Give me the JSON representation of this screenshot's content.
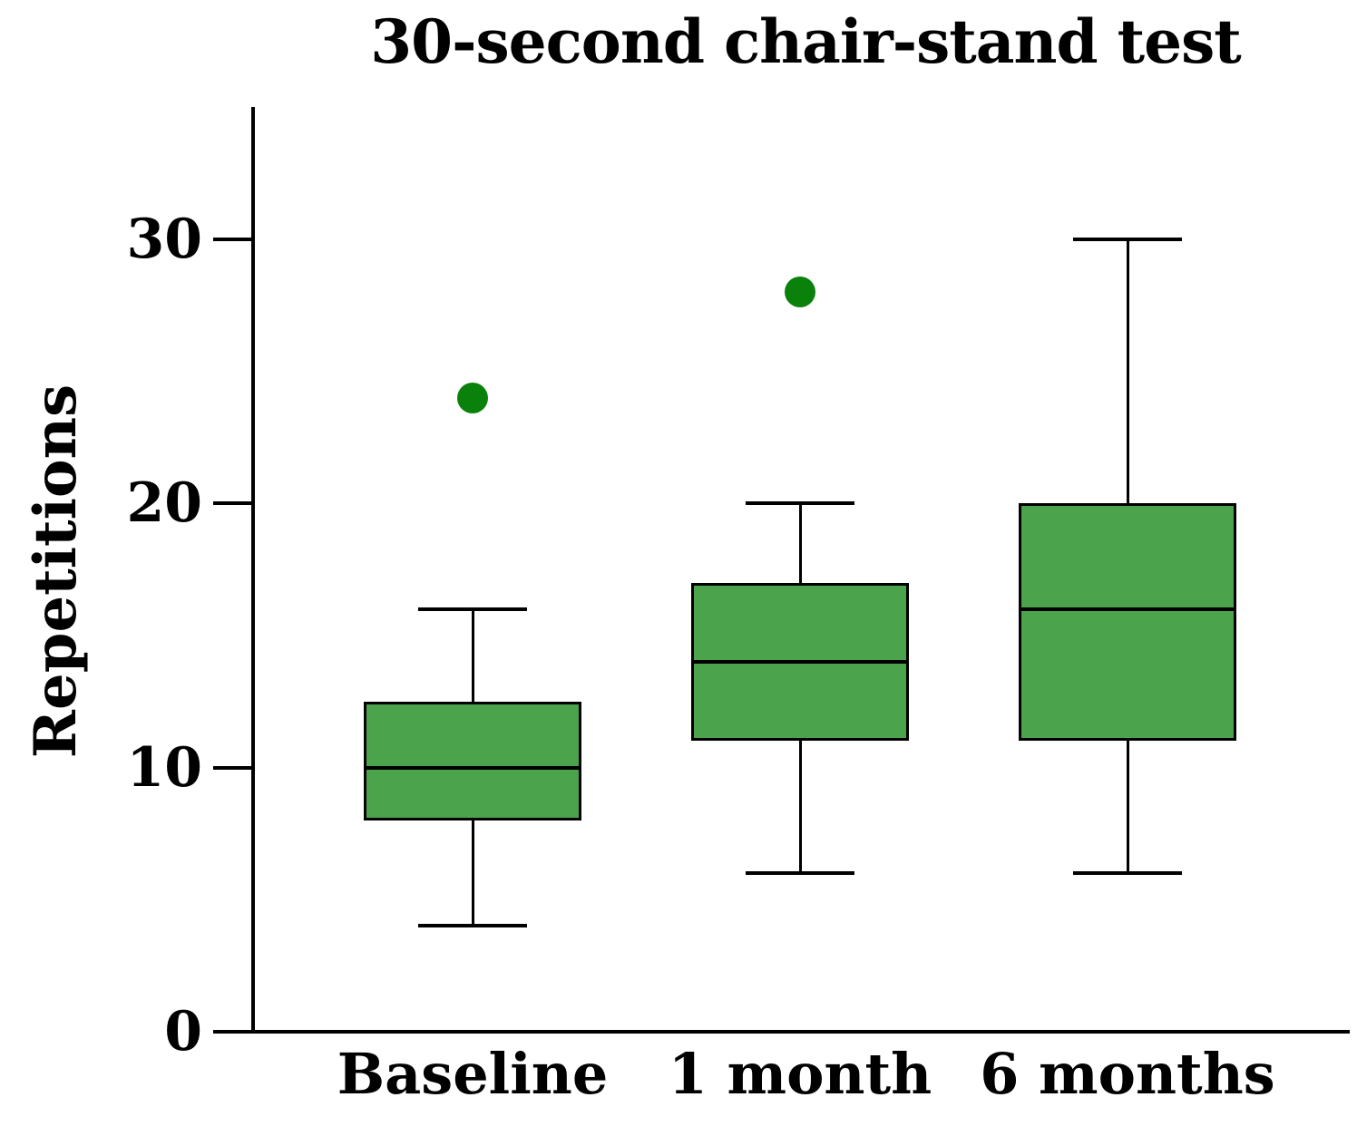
{
  "title": "30-second chair-stand test",
  "chart_data": {
    "type": "boxplot",
    "title": "30-second chair-stand test",
    "ylabel": "Repetitions",
    "xlabel": "",
    "categories": [
      "Baseline",
      "1 month",
      "6 months"
    ],
    "yticks": [
      0,
      10,
      20,
      30
    ],
    "ylim": [
      0,
      35
    ],
    "grid": false,
    "legend": false,
    "series": [
      {
        "name": "Baseline",
        "whisker_low": 4,
        "q1": 8,
        "median": 10,
        "q3": 12.5,
        "whisker_high": 16,
        "outliers": [
          24
        ]
      },
      {
        "name": "1 month",
        "whisker_low": 6,
        "q1": 11,
        "median": 14,
        "q3": 17,
        "whisker_high": 20,
        "outliers": [
          28
        ]
      },
      {
        "name": "6 months",
        "whisker_low": 6,
        "q1": 11,
        "median": 16,
        "q3": 20,
        "whisker_high": 30,
        "outliers": []
      }
    ],
    "colors": {
      "box_fill": "#4ba34c",
      "box_border": "#000000",
      "median": "#000000",
      "whisker": "#000000",
      "outlier": "#0a810a",
      "axis": "#000000",
      "text": "#000000",
      "background": "#ffffff"
    }
  }
}
